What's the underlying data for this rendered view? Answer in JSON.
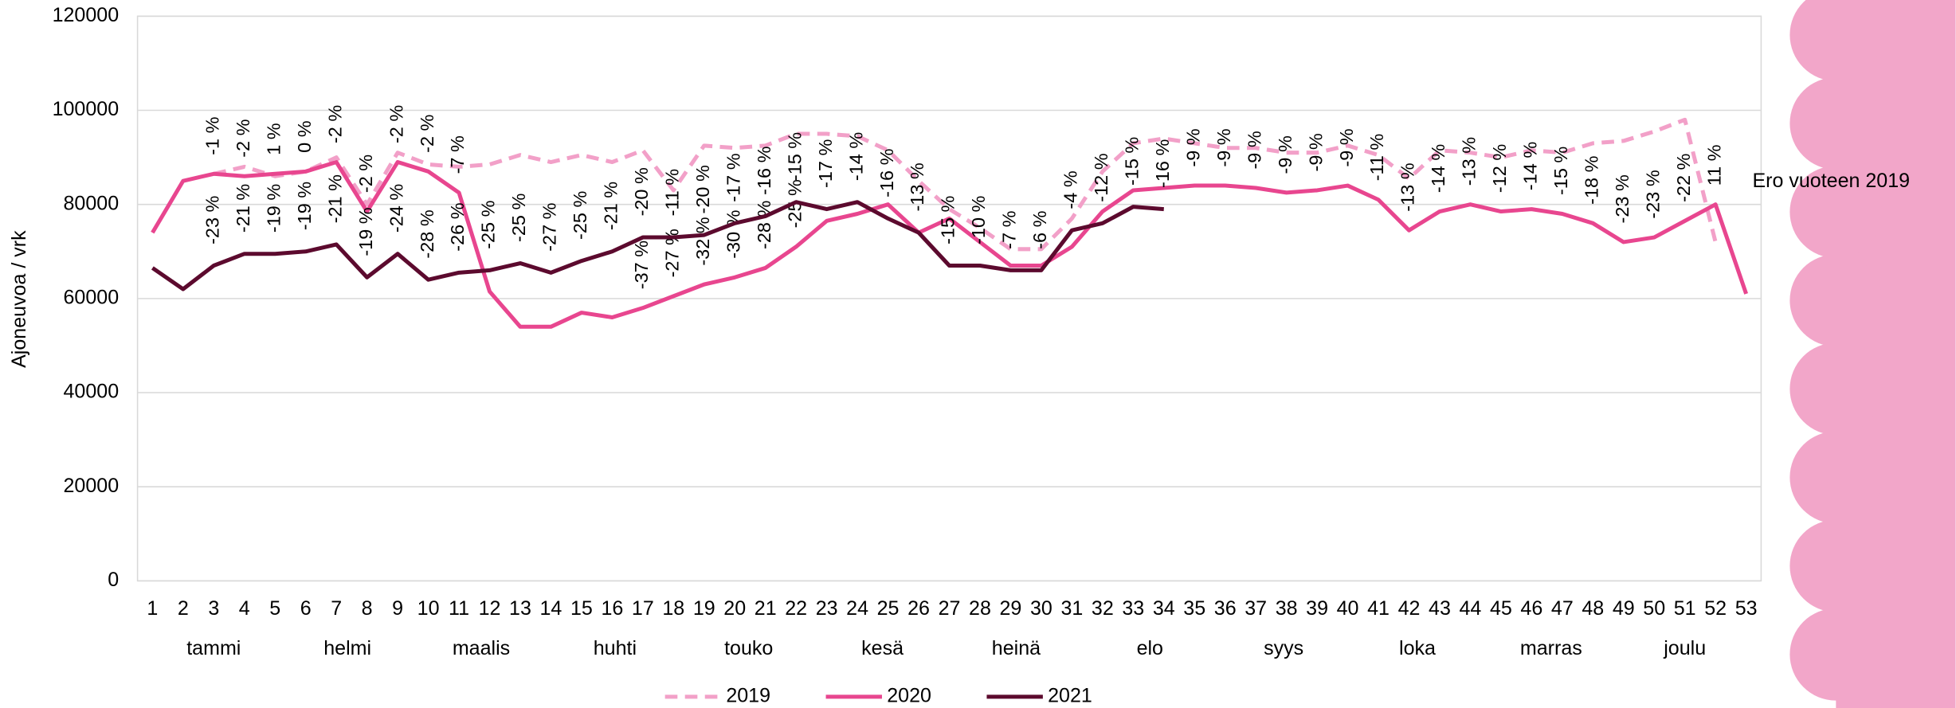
{
  "chart_data": {
    "type": "line",
    "y_label": "Ajoneuvoa / vrk",
    "annotation": "Ero vuoteen 2019",
    "categories": [
      1,
      2,
      3,
      4,
      5,
      6,
      7,
      8,
      9,
      10,
      11,
      12,
      13,
      14,
      15,
      16,
      17,
      18,
      19,
      20,
      21,
      22,
      23,
      24,
      25,
      26,
      27,
      28,
      29,
      30,
      31,
      32,
      33,
      34,
      35,
      36,
      37,
      38,
      39,
      40,
      41,
      42,
      43,
      44,
      45,
      46,
      47,
      48,
      49,
      50,
      51,
      52,
      53
    ],
    "months": [
      "tammi",
      "helmi",
      "maalis",
      "huhti",
      "touko",
      "kesä",
      "heinä",
      "elo",
      "syys",
      "loka",
      "marras",
      "joulu"
    ],
    "ylim": [
      0,
      120000
    ],
    "yticks": [
      0,
      20000,
      40000,
      60000,
      80000,
      100000,
      120000
    ],
    "grid": true,
    "legend": "bottom",
    "series": [
      {
        "name": "2019",
        "color": "#f2a0c8",
        "dashed": true,
        "values": [
          null,
          null,
          86500,
          88000,
          86000,
          87000,
          90000,
          80000,
          91000,
          88500,
          88000,
          88500,
          90500,
          89000,
          90500,
          89000,
          91500,
          83000,
          92500,
          92000,
          92500,
          95000,
          95000,
          94500,
          91500,
          85000,
          79000,
          75000,
          70500,
          70500,
          77000,
          87000,
          93000,
          94000,
          93000,
          92000,
          92000,
          91000,
          91000,
          92500,
          90500,
          85500,
          91500,
          91000,
          90000,
          91500,
          91000,
          93000,
          93500,
          95500,
          98000,
          72000,
          null
        ]
      },
      {
        "name": "2020",
        "color": "#e8468f",
        "dashed": false,
        "values": [
          74000,
          85000,
          86500,
          86000,
          86500,
          87000,
          89000,
          78500,
          89000,
          87000,
          82500,
          61500,
          54000,
          54000,
          57000,
          56000,
          58000,
          60500,
          63000,
          64500,
          66500,
          71000,
          76500,
          78000,
          80000,
          74000,
          77000,
          72000,
          67000,
          67000,
          71000,
          78500,
          83000,
          83500,
          84000,
          84000,
          83500,
          82500,
          83000,
          84000,
          81000,
          74500,
          78500,
          80000,
          78500,
          79000,
          78000,
          76000,
          72000,
          73000,
          76500,
          80000,
          61000
        ],
        "label_color": "#8c8c8c",
        "difference_labels": [
          null,
          null,
          "-1 %",
          "-2 %",
          "1 %",
          "0 %",
          "-2 %",
          "-2 %",
          "-2 %",
          "-2 %",
          "-7 %",
          null,
          null,
          null,
          null,
          null,
          "-37 %",
          "-27 %",
          "-32 %",
          "-30 %",
          "-28 %",
          "-25 %",
          null,
          null,
          null,
          null,
          null,
          null,
          null,
          null,
          null,
          null,
          null,
          null,
          "-9 %",
          "-9 %",
          "-9 %",
          "-9 %",
          "-9 %",
          "-9 %",
          "-11 %",
          "-13 %",
          "-14 %",
          "-13 %",
          "-12 %",
          "-14 %",
          "-15 %",
          "-18 %",
          "-23 %",
          "-23 %",
          "-22 %",
          "11 %",
          null
        ]
      },
      {
        "name": "2021",
        "color": "#5c0a2e",
        "dashed": false,
        "values": [
          66500,
          62000,
          67000,
          69500,
          69500,
          70000,
          71500,
          64500,
          69500,
          64000,
          65500,
          66000,
          67500,
          65500,
          68000,
          70000,
          73000,
          73000,
          73500,
          76000,
          77500,
          80500,
          79000,
          80500,
          77000,
          74000,
          67000,
          67000,
          66000,
          66000,
          74500,
          76000,
          79500,
          79000,
          null,
          null,
          null,
          null,
          null,
          null,
          null,
          null,
          null,
          null,
          null,
          null,
          null,
          null,
          null,
          null,
          null,
          null,
          null
        ],
        "label_color": "#000000",
        "difference_labels": [
          null,
          null,
          "-23 %",
          "-21 %",
          "-19 %",
          "-19 %",
          "-21 %",
          "-19 %",
          "-24 %",
          "-28 %",
          "-26 %",
          "-25 %",
          "-25 %",
          "-27 %",
          "-25 %",
          "-21 %",
          "-20 %",
          "-11 %",
          "-20 %",
          "-17 %",
          "-16 %",
          "-15 %",
          "-17 %",
          "-14 %",
          "-16 %",
          "-13 %",
          "-15 %",
          "-10 %",
          "-7 %",
          "-6 %",
          "-4 %",
          "-12 %",
          "-15 %",
          "-16 %",
          null,
          null,
          null,
          null,
          null,
          null,
          null,
          null,
          null,
          null,
          null,
          null,
          null,
          null,
          null,
          null,
          null,
          null,
          null
        ]
      }
    ]
  }
}
